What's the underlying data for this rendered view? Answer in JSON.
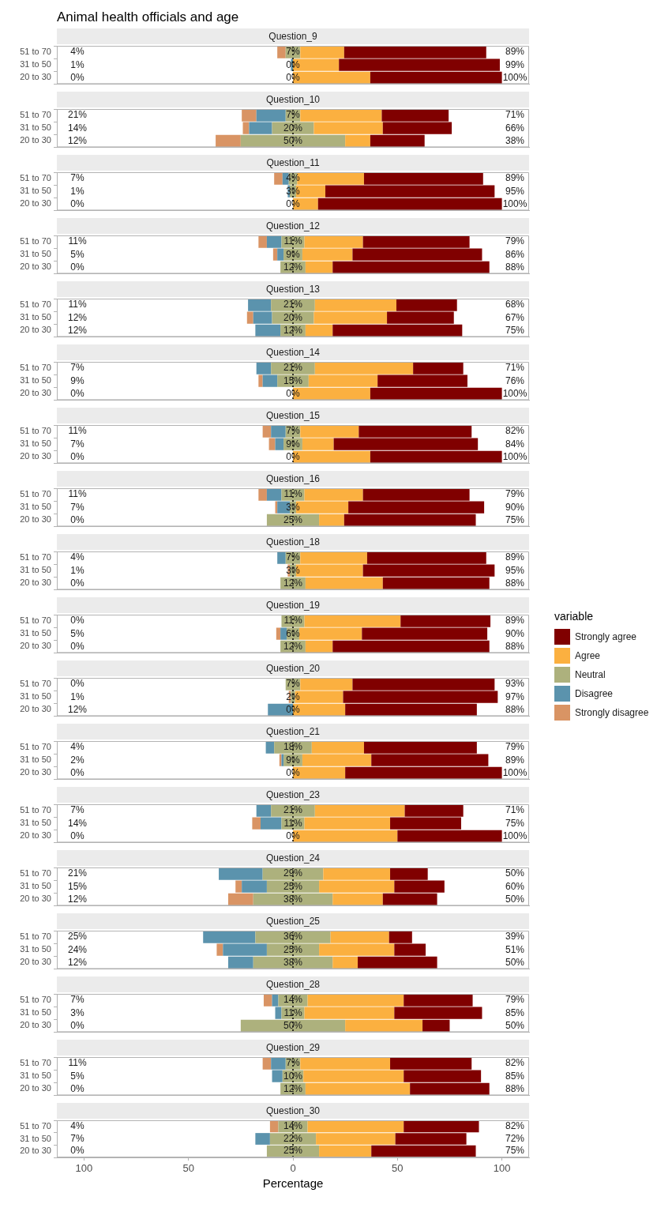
{
  "chart_data": [
    {
      "type": "bar",
      "title": "Animal health officials and age",
      "subtitle": "Question_9",
      "orientation": "horizontal",
      "tick_labels": "y",
      "categories": [
        "51 to 70",
        "31 to 50",
        "20 to 30"
      ],
      "xlim": [
        -113,
        113
      ],
      "ref_lines": [
        {
          "axis": "x",
          "value": 0,
          "line_style": "dotted"
        }
      ],
      "series": [
        {
          "color": "#800000",
          "values": [
            68,
            77,
            63
          ],
          "base": [
            24.5,
            22,
            37
          ]
        },
        {
          "color": "#fbb040",
          "values": [
            21,
            22,
            37
          ],
          "base": [
            3.5,
            0,
            0
          ]
        },
        {
          "color": "#adb17d",
          "values": [
            7,
            null,
            null
          ],
          "base": [
            -3.5,
            null,
            null
          ]
        },
        {
          "color": "#5b93ad",
          "values": [
            null,
            1,
            null
          ],
          "base": [
            null,
            -1,
            null
          ]
        },
        {
          "color": "#d99464",
          "values": [
            4,
            null,
            null
          ],
          "base": [
            -7.5,
            null,
            null
          ]
        }
      ],
      "annotations": [
        "4%",
        "1%",
        "0%",
        "7%",
        "0%",
        "0%",
        "89%",
        "99%",
        "100%"
      ]
    },
    {
      "type": "bar",
      "subtitle": "Question_10",
      "orientation": "horizontal",
      "tick_labels": "y",
      "categories": [
        "51 to 70",
        "31 to 50",
        "20 to 30"
      ],
      "xlim": [
        -113,
        113
      ],
      "ref_lines": [
        {
          "axis": "x",
          "value": 0,
          "line_style": "dotted"
        }
      ],
      "series": [
        {
          "color": "#800000",
          "values": [
            32,
            33,
            26
          ],
          "base": [
            42.5,
            43,
            37
          ]
        },
        {
          "color": "#fbb040",
          "values": [
            39,
            33,
            12
          ],
          "base": [
            3.5,
            10,
            25
          ]
        },
        {
          "color": "#adb17d",
          "values": [
            7,
            20,
            50
          ],
          "base": [
            -3.5,
            -10,
            -25
          ]
        },
        {
          "color": "#5b93ad",
          "values": [
            14,
            11,
            null
          ],
          "base": [
            -17.5,
            -21,
            null
          ]
        },
        {
          "color": "#d99464",
          "values": [
            7,
            3,
            12
          ],
          "base": [
            -24.5,
            -24,
            -37
          ]
        }
      ],
      "annotations": [
        "21%",
        "14%",
        "12%",
        "7%",
        "20%",
        "50%",
        "71%",
        "66%",
        "38%"
      ]
    },
    {
      "type": "bar",
      "subtitle": "Question_11",
      "orientation": "horizontal",
      "tick_labels": "y",
      "categories": [
        "51 to 70",
        "31 to 50",
        "20 to 30"
      ],
      "xlim": [
        -113,
        113
      ],
      "ref_lines": [
        {
          "axis": "x",
          "value": 0,
          "line_style": "dotted"
        }
      ],
      "series": [
        {
          "color": "#800000",
          "values": [
            57,
            81,
            88
          ],
          "base": [
            34,
            15.5,
            12
          ]
        },
        {
          "color": "#fbb040",
          "values": [
            32,
            14,
            12
          ],
          "base": [
            2,
            1.5,
            0
          ]
        },
        {
          "color": "#adb17d",
          "values": [
            4,
            3,
            null
          ],
          "base": [
            -2,
            -1.5,
            null
          ]
        },
        {
          "color": "#5b93ad",
          "values": [
            3,
            1,
            null
          ],
          "base": [
            -5,
            -2.5,
            null
          ]
        },
        {
          "color": "#d99464",
          "values": [
            4,
            null,
            null
          ],
          "base": [
            -9,
            null,
            null
          ]
        }
      ],
      "annotations": [
        "7%",
        "1%",
        "0%",
        "4%",
        "3%",
        "0%",
        "89%",
        "95%",
        "100%"
      ]
    },
    {
      "type": "bar",
      "subtitle": "Question_12",
      "orientation": "horizontal",
      "tick_labels": "y",
      "categories": [
        "51 to 70",
        "31 to 50",
        "20 to 30"
      ],
      "xlim": [
        -113,
        113
      ],
      "ref_lines": [
        {
          "axis": "x",
          "value": 0,
          "line_style": "dotted"
        }
      ],
      "series": [
        {
          "color": "#800000",
          "values": [
            51,
            62,
            75
          ],
          "base": [
            33.5,
            28.5,
            19
          ]
        },
        {
          "color": "#fbb040",
          "values": [
            28,
            24,
            13
          ],
          "base": [
            5.5,
            4.5,
            6
          ]
        },
        {
          "color": "#adb17d",
          "values": [
            11,
            9,
            12
          ],
          "base": [
            -5.5,
            -4.5,
            -6
          ]
        },
        {
          "color": "#5b93ad",
          "values": [
            7,
            3,
            null
          ],
          "base": [
            -12.5,
            -7.5,
            null
          ]
        },
        {
          "color": "#d99464",
          "values": [
            4,
            2,
            null
          ],
          "base": [
            -16.5,
            -9.5,
            null
          ]
        }
      ],
      "annotations": [
        "11%",
        "5%",
        "0%",
        "11%",
        "9%",
        "12%",
        "79%",
        "86%",
        "88%"
      ]
    },
    {
      "type": "bar",
      "subtitle": "Question_13",
      "orientation": "horizontal",
      "tick_labels": "y",
      "categories": [
        "51 to 70",
        "31 to 50",
        "20 to 30"
      ],
      "xlim": [
        -113,
        113
      ],
      "ref_lines": [
        {
          "axis": "x",
          "value": 0,
          "line_style": "dotted"
        }
      ],
      "series": [
        {
          "color": "#800000",
          "values": [
            29,
            32,
            62
          ],
          "base": [
            49.5,
            45,
            19
          ]
        },
        {
          "color": "#fbb040",
          "values": [
            39,
            35,
            13
          ],
          "base": [
            10.5,
            10,
            6
          ]
        },
        {
          "color": "#adb17d",
          "values": [
            21,
            20,
            12
          ],
          "base": [
            -10.5,
            -10,
            -6
          ]
        },
        {
          "color": "#5b93ad",
          "values": [
            11,
            9,
            12
          ],
          "base": [
            -21.5,
            -19,
            -18
          ]
        },
        {
          "color": "#d99464",
          "values": [
            null,
            3,
            null
          ],
          "base": [
            null,
            -22,
            null
          ]
        }
      ],
      "annotations": [
        "11%",
        "12%",
        "12%",
        "21%",
        "20%",
        "12%",
        "68%",
        "67%",
        "75%"
      ]
    },
    {
      "type": "bar",
      "subtitle": "Question_14",
      "orientation": "horizontal",
      "tick_labels": "y",
      "categories": [
        "51 to 70",
        "31 to 50",
        "20 to 30"
      ],
      "xlim": [
        -113,
        113
      ],
      "ref_lines": [
        {
          "axis": "x",
          "value": 0,
          "line_style": "dotted"
        }
      ],
      "series": [
        {
          "color": "#800000",
          "values": [
            24,
            43,
            63
          ],
          "base": [
            57.5,
            40.5,
            37
          ]
        },
        {
          "color": "#fbb040",
          "values": [
            47,
            33,
            37
          ],
          "base": [
            10.5,
            7.5,
            0
          ]
        },
        {
          "color": "#adb17d",
          "values": [
            21,
            15,
            null
          ],
          "base": [
            -10.5,
            -7.5,
            null
          ]
        },
        {
          "color": "#5b93ad",
          "values": [
            7,
            7,
            null
          ],
          "base": [
            -17.5,
            -14.5,
            null
          ]
        },
        {
          "color": "#d99464",
          "values": [
            null,
            2,
            null
          ],
          "base": [
            null,
            -16.5,
            null
          ]
        }
      ],
      "annotations": [
        "7%",
        "9%",
        "0%",
        "21%",
        "15%",
        "0%",
        "71%",
        "76%",
        "100%"
      ]
    },
    {
      "type": "bar",
      "subtitle": "Question_15",
      "orientation": "horizontal",
      "tick_labels": "y",
      "categories": [
        "51 to 70",
        "31 to 50",
        "20 to 30"
      ],
      "xlim": [
        -113,
        113
      ],
      "ref_lines": [
        {
          "axis": "x",
          "value": 0,
          "line_style": "dotted"
        }
      ],
      "series": [
        {
          "color": "#800000",
          "values": [
            54,
            69,
            63
          ],
          "base": [
            31.5,
            19.5,
            37
          ]
        },
        {
          "color": "#fbb040",
          "values": [
            28,
            15,
            37
          ],
          "base": [
            3.5,
            4.5,
            0
          ]
        },
        {
          "color": "#adb17d",
          "values": [
            7,
            9,
            null
          ],
          "base": [
            -3.5,
            -4.5,
            null
          ]
        },
        {
          "color": "#5b93ad",
          "values": [
            7,
            4,
            null
          ],
          "base": [
            -10.5,
            -8.5,
            null
          ]
        },
        {
          "color": "#d99464",
          "values": [
            4,
            3,
            null
          ],
          "base": [
            -14.5,
            -11.5,
            null
          ]
        }
      ],
      "annotations": [
        "11%",
        "7%",
        "0%",
        "7%",
        "9%",
        "0%",
        "82%",
        "84%",
        "100%"
      ]
    },
    {
      "type": "bar",
      "subtitle": "Question_16",
      "orientation": "horizontal",
      "tick_labels": "y",
      "categories": [
        "51 to 70",
        "31 to 50",
        "20 to 30"
      ],
      "xlim": [
        -113,
        113
      ],
      "ref_lines": [
        {
          "axis": "x",
          "value": 0,
          "line_style": "dotted"
        }
      ],
      "series": [
        {
          "color": "#800000",
          "values": [
            51,
            65,
            63
          ],
          "base": [
            33.5,
            26.5,
            24.5
          ]
        },
        {
          "color": "#fbb040",
          "values": [
            28,
            25,
            12
          ],
          "base": [
            5.5,
            1.5,
            12.5
          ]
        },
        {
          "color": "#adb17d",
          "values": [
            11,
            3,
            25
          ],
          "base": [
            -5.5,
            -1.5,
            -12.5
          ]
        },
        {
          "color": "#5b93ad",
          "values": [
            7,
            6,
            null
          ],
          "base": [
            -12.5,
            -7.5,
            null
          ]
        },
        {
          "color": "#d99464",
          "values": [
            4,
            1,
            null
          ],
          "base": [
            -16.5,
            -8.5,
            null
          ]
        }
      ],
      "annotations": [
        "11%",
        "7%",
        "0%",
        "11%",
        "3%",
        "25%",
        "79%",
        "90%",
        "75%"
      ]
    },
    {
      "type": "bar",
      "subtitle": "Question_18",
      "orientation": "horizontal",
      "tick_labels": "y",
      "categories": [
        "51 to 70",
        "31 to 50",
        "20 to 30"
      ],
      "xlim": [
        -113,
        113
      ],
      "ref_lines": [
        {
          "axis": "x",
          "value": 0,
          "line_style": "dotted"
        }
      ],
      "legend": "right",
      "legend_title": "variable",
      "series": [
        {
          "name": "Strongly agree",
          "color": "#800000",
          "values": [
            57,
            63,
            51
          ],
          "base": [
            35.5,
            33.5,
            43
          ]
        },
        {
          "name": "Agree",
          "color": "#fbb040",
          "values": [
            32,
            32,
            37
          ],
          "base": [
            3.5,
            1.5,
            6
          ]
        },
        {
          "name": "Neutral",
          "color": "#adb17d",
          "values": [
            7,
            3,
            12
          ],
          "base": [
            -3.5,
            -1.5,
            -6
          ]
        },
        {
          "name": "Disagree",
          "color": "#5b93ad",
          "values": [
            4,
            null,
            null
          ],
          "base": [
            -7.5,
            null,
            null
          ]
        },
        {
          "name": "Strongly disagree",
          "color": "#d99464",
          "values": [
            null,
            1,
            null
          ],
          "base": [
            null,
            -2.5,
            null
          ]
        }
      ],
      "annotations": [
        "4%",
        "1%",
        "0%",
        "7%",
        "3%",
        "12%",
        "89%",
        "95%",
        "88%"
      ]
    },
    {
      "type": "bar",
      "subtitle": "Question_19",
      "orientation": "horizontal",
      "tick_labels": "y",
      "categories": [
        "51 to 70",
        "31 to 50",
        "20 to 30"
      ],
      "xlim": [
        -113,
        113
      ],
      "ref_lines": [
        {
          "axis": "x",
          "value": 0,
          "line_style": "dotted"
        }
      ],
      "series": [
        {
          "color": "#800000",
          "values": [
            43,
            60,
            75
          ],
          "base": [
            51.5,
            33,
            19
          ]
        },
        {
          "color": "#fbb040",
          "values": [
            46,
            30,
            13
          ],
          "base": [
            5.5,
            3,
            6
          ]
        },
        {
          "color": "#adb17d",
          "values": [
            11,
            6,
            12
          ],
          "base": [
            -5.5,
            -3,
            -6
          ]
        },
        {
          "color": "#5b93ad",
          "values": [
            null,
            3,
            null
          ],
          "base": [
            null,
            -6,
            null
          ]
        },
        {
          "color": "#d99464",
          "values": [
            null,
            2,
            null
          ],
          "base": [
            null,
            -8,
            null
          ]
        }
      ],
      "annotations": [
        "0%",
        "5%",
        "0%",
        "11%",
        "6%",
        "12%",
        "89%",
        "90%",
        "88%"
      ]
    },
    {
      "type": "bar",
      "subtitle": "Question_20",
      "orientation": "horizontal",
      "tick_labels": "y",
      "categories": [
        "51 to 70",
        "31 to 50",
        "20 to 30"
      ],
      "xlim": [
        -113,
        113
      ],
      "ref_lines": [
        {
          "axis": "x",
          "value": 0,
          "line_style": "dotted"
        }
      ],
      "series": [
        {
          "color": "#800000",
          "values": [
            68,
            74,
            63
          ],
          "base": [
            28.5,
            24,
            25
          ]
        },
        {
          "color": "#fbb040",
          "values": [
            25,
            23,
            25
          ],
          "base": [
            3.5,
            1,
            0
          ]
        },
        {
          "color": "#adb17d",
          "values": [
            7,
            2,
            null
          ],
          "base": [
            -3.5,
            -1,
            null
          ]
        },
        {
          "color": "#5b93ad",
          "values": [
            null,
            null,
            12
          ],
          "base": [
            null,
            null,
            -12
          ]
        },
        {
          "color": "#d99464",
          "values": [
            null,
            1,
            null
          ],
          "base": [
            null,
            -2,
            null
          ]
        }
      ],
      "annotations": [
        "0%",
        "1%",
        "12%",
        "7%",
        "2%",
        "0%",
        "93%",
        "97%",
        "88%"
      ]
    },
    {
      "type": "bar",
      "subtitle": "Question_21",
      "orientation": "horizontal",
      "tick_labels": "y",
      "categories": [
        "51 to 70",
        "31 to 50",
        "20 to 30"
      ],
      "xlim": [
        -113,
        113
      ],
      "ref_lines": [
        {
          "axis": "x",
          "value": 0,
          "line_style": "dotted"
        }
      ],
      "series": [
        {
          "color": "#800000",
          "values": [
            54,
            56,
            75
          ],
          "base": [
            34,
            37.5,
            25
          ]
        },
        {
          "color": "#fbb040",
          "values": [
            25,
            33,
            25
          ],
          "base": [
            9,
            4.5,
            0
          ]
        },
        {
          "color": "#adb17d",
          "values": [
            18,
            9,
            null
          ],
          "base": [
            -9,
            -4.5,
            null
          ]
        },
        {
          "color": "#5b93ad",
          "values": [
            4,
            1,
            null
          ],
          "base": [
            -13,
            -5.5,
            null
          ]
        },
        {
          "color": "#d99464",
          "values": [
            null,
            1,
            null
          ],
          "base": [
            null,
            -6.5,
            null
          ]
        }
      ],
      "annotations": [
        "4%",
        "2%",
        "0%",
        "18%",
        "9%",
        "0%",
        "79%",
        "89%",
        "100%"
      ]
    },
    {
      "type": "bar",
      "subtitle": "Question_23",
      "orientation": "horizontal",
      "tick_labels": "y",
      "categories": [
        "51 to 70",
        "31 to 50",
        "20 to 30"
      ],
      "xlim": [
        -113,
        113
      ],
      "ref_lines": [
        {
          "axis": "x",
          "value": 0,
          "line_style": "dotted"
        }
      ],
      "series": [
        {
          "color": "#800000",
          "values": [
            28,
            34,
            50
          ],
          "base": [
            53.5,
            46.5,
            50
          ]
        },
        {
          "color": "#fbb040",
          "values": [
            43,
            41,
            50
          ],
          "base": [
            10.5,
            5.5,
            0
          ]
        },
        {
          "color": "#adb17d",
          "values": [
            21,
            11,
            null
          ],
          "base": [
            -10.5,
            -5.5,
            null
          ]
        },
        {
          "color": "#5b93ad",
          "values": [
            7,
            10,
            null
          ],
          "base": [
            -17.5,
            -15.5,
            null
          ]
        },
        {
          "color": "#d99464",
          "values": [
            null,
            4,
            null
          ],
          "base": [
            null,
            -19.5,
            null
          ]
        }
      ],
      "annotations": [
        "7%",
        "14%",
        "0%",
        "21%",
        "11%",
        "0%",
        "71%",
        "75%",
        "100%"
      ]
    },
    {
      "type": "bar",
      "subtitle": "Question_24",
      "orientation": "horizontal",
      "tick_labels": "y",
      "categories": [
        "51 to 70",
        "31 to 50",
        "20 to 30"
      ],
      "xlim": [
        -113,
        113
      ],
      "ref_lines": [
        {
          "axis": "x",
          "value": 0,
          "line_style": "dotted"
        }
      ],
      "series": [
        {
          "color": "#800000",
          "values": [
            18,
            24,
            26
          ],
          "base": [
            46.5,
            48.5,
            43
          ]
        },
        {
          "color": "#fbb040",
          "values": [
            32,
            36,
            24
          ],
          "base": [
            14.5,
            12.5,
            19
          ]
        },
        {
          "color": "#adb17d",
          "values": [
            29,
            25,
            38
          ],
          "base": [
            -14.5,
            -12.5,
            -19
          ]
        },
        {
          "color": "#5b93ad",
          "values": [
            21,
            12,
            null
          ],
          "base": [
            -35.5,
            -24.5,
            null
          ]
        },
        {
          "color": "#d99464",
          "values": [
            null,
            3,
            12
          ],
          "base": [
            null,
            -27.5,
            -31
          ]
        }
      ],
      "annotations": [
        "21%",
        "15%",
        "12%",
        "29%",
        "25%",
        "38%",
        "50%",
        "60%",
        "50%"
      ]
    },
    {
      "type": "bar",
      "subtitle": "Question_25",
      "orientation": "horizontal",
      "tick_labels": "y",
      "categories": [
        "51 to 70",
        "31 to 50",
        "20 to 30"
      ],
      "xlim": [
        -113,
        113
      ],
      "ref_lines": [
        {
          "axis": "x",
          "value": 0,
          "line_style": "dotted"
        }
      ],
      "series": [
        {
          "color": "#800000",
          "values": [
            11,
            15,
            38
          ],
          "base": [
            46,
            48.5,
            31
          ]
        },
        {
          "color": "#fbb040",
          "values": [
            28,
            36,
            12
          ],
          "base": [
            18,
            12.5,
            19
          ]
        },
        {
          "color": "#adb17d",
          "values": [
            36,
            25,
            38
          ],
          "base": [
            -18,
            -12.5,
            -19
          ]
        },
        {
          "color": "#5b93ad",
          "values": [
            25,
            21,
            12
          ],
          "base": [
            -43,
            -33.5,
            -31
          ]
        },
        {
          "color": "#d99464",
          "values": [
            null,
            3,
            null
          ],
          "base": [
            null,
            -36.5,
            null
          ]
        }
      ],
      "annotations": [
        "25%",
        "24%",
        "12%",
        "36%",
        "25%",
        "38%",
        "39%",
        "51%",
        "50%"
      ]
    },
    {
      "type": "bar",
      "subtitle": "Question_28",
      "orientation": "horizontal",
      "tick_labels": "y",
      "categories": [
        "51 to 70",
        "31 to 50",
        "20 to 30"
      ],
      "xlim": [
        -113,
        113
      ],
      "ref_lines": [
        {
          "axis": "x",
          "value": 0,
          "line_style": "dotted"
        }
      ],
      "series": [
        {
          "color": "#800000",
          "values": [
            33,
            42,
            13
          ],
          "base": [
            53,
            48.5,
            62
          ]
        },
        {
          "color": "#fbb040",
          "values": [
            46,
            43,
            37
          ],
          "base": [
            7,
            5.5,
            25
          ]
        },
        {
          "color": "#adb17d",
          "values": [
            14,
            11,
            50
          ],
          "base": [
            -7,
            -5.5,
            -25
          ]
        },
        {
          "color": "#5b93ad",
          "values": [
            3,
            3,
            null
          ],
          "base": [
            -10,
            -8.5,
            null
          ]
        },
        {
          "color": "#d99464",
          "values": [
            4,
            null,
            null
          ],
          "base": [
            -14,
            null,
            null
          ]
        }
      ],
      "annotations": [
        "7%",
        "3%",
        "0%",
        "14%",
        "11%",
        "50%",
        "79%",
        "85%",
        "50%"
      ]
    },
    {
      "type": "bar",
      "subtitle": "Question_29",
      "orientation": "horizontal",
      "tick_labels": "y",
      "categories": [
        "51 to 70",
        "31 to 50",
        "20 to 30"
      ],
      "xlim": [
        -113,
        113
      ],
      "ref_lines": [
        {
          "axis": "x",
          "value": 0,
          "line_style": "dotted"
        }
      ],
      "series": [
        {
          "color": "#800000",
          "values": [
            39,
            37,
            38
          ],
          "base": [
            46.5,
            53,
            56
          ]
        },
        {
          "color": "#fbb040",
          "values": [
            43,
            48,
            50
          ],
          "base": [
            3.5,
            5,
            6
          ]
        },
        {
          "color": "#adb17d",
          "values": [
            7,
            10,
            12
          ],
          "base": [
            -3.5,
            -5,
            -6
          ]
        },
        {
          "color": "#5b93ad",
          "values": [
            7,
            5,
            null
          ],
          "base": [
            -10.5,
            -10,
            null
          ]
        },
        {
          "color": "#d99464",
          "values": [
            4,
            null,
            null
          ],
          "base": [
            -14.5,
            null,
            null
          ]
        }
      ],
      "annotations": [
        "11%",
        "5%",
        "0%",
        "7%",
        "10%",
        "12%",
        "82%",
        "85%",
        "88%"
      ]
    },
    {
      "type": "bar",
      "subtitle": "Question_30",
      "xlabel": "Percentage",
      "orientation": "horizontal",
      "categories": [
        "51 to 70",
        "31 to 50",
        "20 to 30"
      ],
      "xlim": [
        -113,
        113
      ],
      "xticks": [
        {
          "value": -100,
          "label": "100"
        },
        {
          "value": -50,
          "label": "50"
        },
        0,
        50,
        100
      ],
      "ref_lines": [
        {
          "axis": "x",
          "value": 0,
          "line_style": "dotted"
        }
      ],
      "series": [
        {
          "color": "#800000",
          "values": [
            36,
            34,
            50
          ],
          "base": [
            53,
            49,
            37.5
          ]
        },
        {
          "color": "#fbb040",
          "values": [
            46,
            38,
            25
          ],
          "base": [
            7,
            11,
            12.5
          ]
        },
        {
          "color": "#adb17d",
          "values": [
            14,
            22,
            25
          ],
          "base": [
            -7,
            -11,
            -12.5
          ]
        },
        {
          "color": "#5b93ad",
          "values": [
            null,
            7,
            null
          ],
          "base": [
            null,
            -18,
            null
          ]
        },
        {
          "color": "#d99464",
          "values": [
            4,
            null,
            null
          ],
          "base": [
            -11,
            null,
            null
          ]
        }
      ],
      "annotations": [
        "4%",
        "7%",
        "0%",
        "14%",
        "22%",
        "25%",
        "82%",
        "72%",
        "75%"
      ]
    }
  ]
}
